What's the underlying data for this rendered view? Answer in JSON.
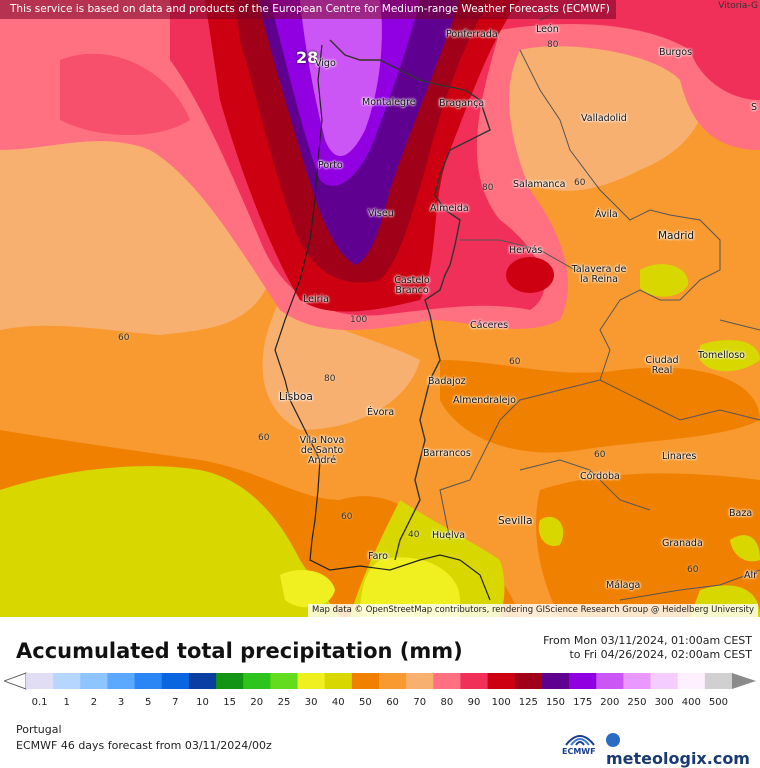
{
  "notice": "This service is based on data and products of the European Centre for Medium-range Weather Forecasts (ECMWF)",
  "corner_label": "Vitoria-G",
  "attribution": "Map data © OpenStreetMap contributors, rendering GIScience Research Group @ Heidelberg University",
  "max_value_label": "28",
  "cities": [
    {
      "name": "Ponferrada"
    },
    {
      "name": "León"
    },
    {
      "name": "Burgos"
    },
    {
      "name": "Vigo"
    },
    {
      "name": "Montalegre"
    },
    {
      "name": "Bragança"
    },
    {
      "name": "Valladolid"
    },
    {
      "name": "Porto"
    },
    {
      "name": "Salamanca"
    },
    {
      "name": "Almeida"
    },
    {
      "name": "Viseu"
    },
    {
      "name": "Ávila"
    },
    {
      "name": "Madrid"
    },
    {
      "name": "Hervás"
    },
    {
      "name": "Talavera de la Reina"
    },
    {
      "name": "Castelo Branco"
    },
    {
      "name": "Leiria"
    },
    {
      "name": "Cáceres"
    },
    {
      "name": "Ciudad Real"
    },
    {
      "name": "Tomelloso"
    },
    {
      "name": "Lisboa"
    },
    {
      "name": "Badajoz"
    },
    {
      "name": "Almendralejo"
    },
    {
      "name": "Évora"
    },
    {
      "name": "Vila Nova de Santo André"
    },
    {
      "name": "Barrancos"
    },
    {
      "name": "Linares"
    },
    {
      "name": "Córdoba"
    },
    {
      "name": "Sevilla"
    },
    {
      "name": "Baza"
    },
    {
      "name": "Huelva"
    },
    {
      "name": "Granada"
    },
    {
      "name": "Faro"
    },
    {
      "name": "Málaga"
    },
    {
      "name": "Alr"
    },
    {
      "name": "S"
    }
  ],
  "contour_labels": [
    "80",
    "80",
    "60",
    "100",
    "80",
    "60",
    "60",
    "60",
    "60",
    "60",
    "40",
    "60"
  ],
  "footer": {
    "title": "Accumulated total precipitation (mm)",
    "from": "From Mon 03/11/2024, 01:00am CEST",
    "to": "to Fri 04/26/2024, 02:00am CEST",
    "region": "Portugal",
    "model": "ECMWF 46 days forecast from  03/11/2024/00z",
    "ecmwf_label": "ECMWF",
    "brand": "meteologix.com"
  },
  "legend": {
    "ticks": [
      "0.1",
      "1",
      "2",
      "3",
      "5",
      "7",
      "10",
      "15",
      "20",
      "25",
      "30",
      "40",
      "50",
      "60",
      "70",
      "80",
      "90",
      "100",
      "125",
      "150",
      "175",
      "200",
      "250",
      "300",
      "400",
      "500"
    ],
    "colors": [
      "#e0ddf5",
      "#b6d5ff",
      "#8ec4ff",
      "#5aa8ff",
      "#2a86f5",
      "#0a66e0",
      "#0a3ea0",
      "#149414",
      "#2ec41e",
      "#64dc1e",
      "#f0f020",
      "#d8d800",
      "#f08000",
      "#f89a30",
      "#f8b070",
      "#ff7080",
      "#f03058",
      "#cc0010",
      "#a00018",
      "#600090",
      "#9000e0",
      "#cc55f5",
      "#e898ff",
      "#f5ccff",
      "#fff0ff",
      "#d0d0d0"
    ]
  }
}
